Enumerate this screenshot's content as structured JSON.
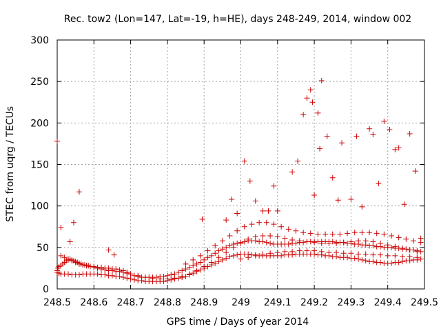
{
  "chart_data": {
    "type": "scatter",
    "title": "Rec. tow2 (Lon=147, Lat=-19, h=HE), days 248-249, 2014, window 002",
    "xlabel": "GPS time / Days of year 2014",
    "ylabel": "STEC from uqrg / TECUs",
    "xlim": [
      248.5,
      249.5
    ],
    "ylim": [
      0,
      300
    ],
    "xticks": [
      248.5,
      248.6,
      248.7,
      248.8,
      248.9,
      249,
      249.1,
      249.2,
      249.3,
      249.4,
      249.5
    ],
    "xtick_labels": [
      "248.5",
      "248.6",
      "248.7",
      "248.8",
      "248.9",
      "249",
      "249.1",
      "249.2",
      "249.3",
      "249.4",
      "249.5"
    ],
    "yticks": [
      0,
      50,
      100,
      150,
      200,
      250,
      300
    ],
    "ytick_labels": [
      "0",
      "50",
      "100",
      "150",
      "200",
      "250",
      "300"
    ],
    "grid": true,
    "marker": "plus",
    "color": "#cc0000",
    "series": [
      {
        "x": [
          248.5,
          248.502,
          248.505,
          248.51,
          248.515,
          248.52,
          248.525,
          248.53,
          248.535,
          248.54,
          248.545,
          248.55,
          248.555,
          248.56,
          248.565,
          248.57,
          248.575,
          248.58,
          248.585,
          248.59,
          248.6,
          248.61,
          248.62,
          248.63,
          248.64,
          248.65,
          248.66,
          248.67,
          248.68,
          248.69,
          248.7,
          248.71,
          248.72,
          248.73,
          248.74,
          248.75,
          248.76,
          248.77,
          248.78,
          248.79,
          248.8,
          248.81,
          248.82,
          248.83,
          248.84,
          248.85,
          248.86,
          248.87,
          248.88,
          248.89,
          248.9,
          248.91,
          248.92,
          248.93,
          248.94,
          248.95,
          248.96,
          248.97,
          248.98,
          248.99,
          249,
          249.01,
          249.02,
          249.03,
          249.04,
          249.05,
          249.06,
          249.07,
          249.08,
          249.09,
          249.1,
          249.11,
          249.12,
          249.13,
          249.14,
          249.15,
          249.16,
          249.17,
          249.18,
          249.19,
          249.2,
          249.21,
          249.22,
          249.23,
          249.24,
          249.25,
          249.26,
          249.27,
          249.28,
          249.29,
          249.3,
          249.31,
          249.32,
          249.33,
          249.34,
          249.35,
          249.36,
          249.37,
          249.38,
          249.39,
          249.4,
          249.41,
          249.42,
          249.43,
          249.44,
          249.45,
          249.46,
          249.47,
          249.48,
          249.49
        ],
        "y": [
          22,
          25,
          27,
          28,
          30,
          32,
          34,
          35,
          36,
          35,
          34,
          33,
          32,
          31,
          30,
          29,
          29,
          28,
          28,
          27,
          27,
          26,
          26,
          25,
          25,
          24,
          24,
          23,
          22,
          20,
          18,
          16,
          15,
          14,
          14,
          14,
          14,
          14,
          15,
          15,
          16,
          17,
          18,
          20,
          22,
          24,
          26,
          28,
          30,
          32,
          35,
          38,
          40,
          43,
          46,
          48,
          50,
          52,
          54,
          55,
          56,
          57,
          58,
          58,
          58,
          57,
          57,
          56,
          55,
          54,
          54,
          54,
          54,
          54,
          55,
          55,
          56,
          56,
          57,
          57,
          57,
          57,
          57,
          57,
          57,
          57,
          56,
          56,
          56,
          55,
          55,
          54,
          54,
          53,
          53,
          52,
          52,
          51,
          51,
          50,
          50,
          50,
          49,
          49,
          48,
          48,
          47,
          47,
          46,
          45
        ]
      },
      {
        "x": [
          248.5,
          248.505,
          248.51,
          248.52,
          248.53,
          248.54,
          248.55,
          248.56,
          248.57,
          248.58,
          248.59,
          248.6,
          248.61,
          248.62,
          248.63,
          248.64,
          248.65,
          248.66,
          248.67,
          248.68,
          248.69,
          248.7,
          248.71,
          248.72,
          248.73,
          248.74,
          248.75,
          248.76,
          248.77,
          248.78,
          248.79,
          248.8,
          248.81,
          248.82,
          248.83,
          248.84,
          248.85,
          248.86,
          248.87,
          248.88,
          248.89,
          248.9,
          248.91,
          248.92,
          248.93,
          248.94,
          248.95,
          248.96,
          248.97,
          248.98,
          248.99,
          249,
          249.01,
          249.02,
          249.03,
          249.04,
          249.05,
          249.06,
          249.07,
          249.08,
          249.09,
          249.1,
          249.11,
          249.12,
          249.13,
          249.14,
          249.15,
          249.16,
          249.17,
          249.18,
          249.19,
          249.2,
          249.21,
          249.22,
          249.23,
          249.24,
          249.25,
          249.26,
          249.27,
          249.28,
          249.29,
          249.3,
          249.31,
          249.32,
          249.33,
          249.34,
          249.35,
          249.36,
          249.37,
          249.38,
          249.39,
          249.4,
          249.41,
          249.42,
          249.43,
          249.44,
          249.45,
          249.46,
          249.47,
          249.48,
          249.49
        ],
        "y": [
          20,
          19,
          18,
          18,
          18,
          17,
          17,
          17,
          18,
          18,
          18,
          18,
          18,
          17,
          17,
          16,
          16,
          15,
          15,
          14,
          13,
          12,
          11,
          10,
          10,
          9,
          9,
          9,
          9,
          9,
          9,
          10,
          11,
          12,
          13,
          14,
          15,
          17,
          19,
          21,
          23,
          25,
          27,
          29,
          31,
          33,
          35,
          37,
          39,
          40,
          41,
          42,
          42,
          42,
          41,
          41,
          40,
          40,
          40,
          40,
          40,
          40,
          40,
          41,
          41,
          41,
          42,
          42,
          42,
          42,
          42,
          42,
          41,
          41,
          40,
          40,
          39,
          39,
          38,
          38,
          38,
          37,
          37,
          36,
          35,
          34,
          33,
          33,
          32,
          32,
          31,
          31,
          31,
          32,
          32,
          33,
          34,
          34,
          35,
          35,
          36
        ]
      },
      {
        "x": [
          248.51,
          248.52,
          248.53,
          248.54,
          248.55,
          248.56,
          248.57,
          248.58,
          248.59,
          248.6,
          248.61,
          248.62,
          248.63,
          248.64,
          248.65,
          248.66,
          248.67,
          248.68,
          248.69,
          248.7,
          248.72,
          248.74,
          248.76,
          248.78,
          248.8,
          248.82,
          248.84,
          248.86,
          248.88,
          248.9,
          248.92,
          248.94,
          248.96,
          248.98,
          249,
          249.02,
          249.04,
          249.06,
          249.08,
          249.1,
          249.12,
          249.14,
          249.16,
          249.18,
          249.2,
          249.22,
          249.24,
          249.26,
          249.28,
          249.3,
          249.32,
          249.34,
          249.36,
          249.38,
          249.4,
          249.42,
          249.44,
          249.46,
          249.48
        ],
        "y": [
          40,
          38,
          36,
          34,
          32,
          30,
          29,
          28,
          27,
          26,
          25,
          24,
          23,
          22,
          22,
          21,
          21,
          20,
          19,
          18,
          16,
          14,
          13,
          12,
          12,
          13,
          15,
          18,
          22,
          27,
          32,
          38,
          44,
          50,
          55,
          60,
          63,
          64,
          64,
          63,
          61,
          59,
          58,
          57,
          56,
          55,
          55,
          55,
          56,
          57,
          58,
          58,
          57,
          55,
          53,
          51,
          49,
          47,
          45
        ]
      },
      {
        "x": [
          248.85,
          248.87,
          248.89,
          248.91,
          248.93,
          248.95,
          248.97,
          248.99,
          249.01,
          249.03,
          249.05,
          249.07,
          249.09,
          249.11,
          249.13,
          249.15,
          249.17,
          249.19,
          249.21,
          249.23,
          249.25,
          249.27,
          249.29,
          249.31,
          249.33,
          249.35,
          249.37,
          249.39,
          249.41,
          249.43,
          249.45,
          249.47,
          249.49
        ],
        "y": [
          30,
          35,
          40,
          46,
          52,
          58,
          64,
          70,
          75,
          78,
          80,
          80,
          78,
          75,
          72,
          70,
          68,
          67,
          66,
          66,
          66,
          66,
          67,
          68,
          68,
          68,
          67,
          66,
          64,
          62,
          60,
          58,
          56
        ]
      },
      {
        "x": [
          249.0,
          249.02,
          249.04,
          249.06,
          249.08,
          249.1,
          249.12,
          249.14,
          249.16,
          249.18,
          249.2,
          249.22,
          249.24,
          249.26,
          249.28,
          249.3,
          249.32,
          249.34,
          249.36,
          249.38,
          249.4,
          249.42,
          249.44,
          249.46,
          249.48
        ],
        "y": [
          36,
          38,
          40,
          42,
          43,
          44,
          45,
          45,
          46,
          46,
          46,
          45,
          44,
          44,
          43,
          43,
          42,
          42,
          41,
          41,
          40,
          40,
          39,
          39,
          38
        ]
      },
      {
        "x": [
          248.5,
          248.51,
          248.535,
          248.545,
          248.56,
          248.64,
          248.655,
          248.895,
          248.96,
          248.975,
          248.99,
          249.01,
          249.025,
          249.04,
          249.06,
          249.075,
          249.09,
          249.1,
          249.14,
          249.155,
          249.17,
          249.18,
          249.19,
          249.195,
          249.2,
          249.21,
          249.215,
          249.22,
          249.235,
          249.25,
          249.265,
          249.275,
          249.3,
          249.315,
          249.33,
          249.35,
          249.36,
          249.375,
          249.39,
          249.405,
          249.42,
          249.43,
          249.445,
          249.46,
          249.475,
          249.49
        ],
        "y": [
          178,
          74,
          57,
          80,
          117,
          47,
          41,
          84,
          83,
          108,
          91,
          154,
          130,
          106,
          94,
          94,
          124,
          94,
          141,
          154,
          210,
          230,
          240,
          225,
          113,
          212,
          169,
          251,
          184,
          134,
          107,
          176,
          108,
          184,
          99,
          193,
          186,
          127,
          202,
          192,
          168,
          170,
          102,
          187,
          142,
          61
        ]
      }
    ]
  }
}
